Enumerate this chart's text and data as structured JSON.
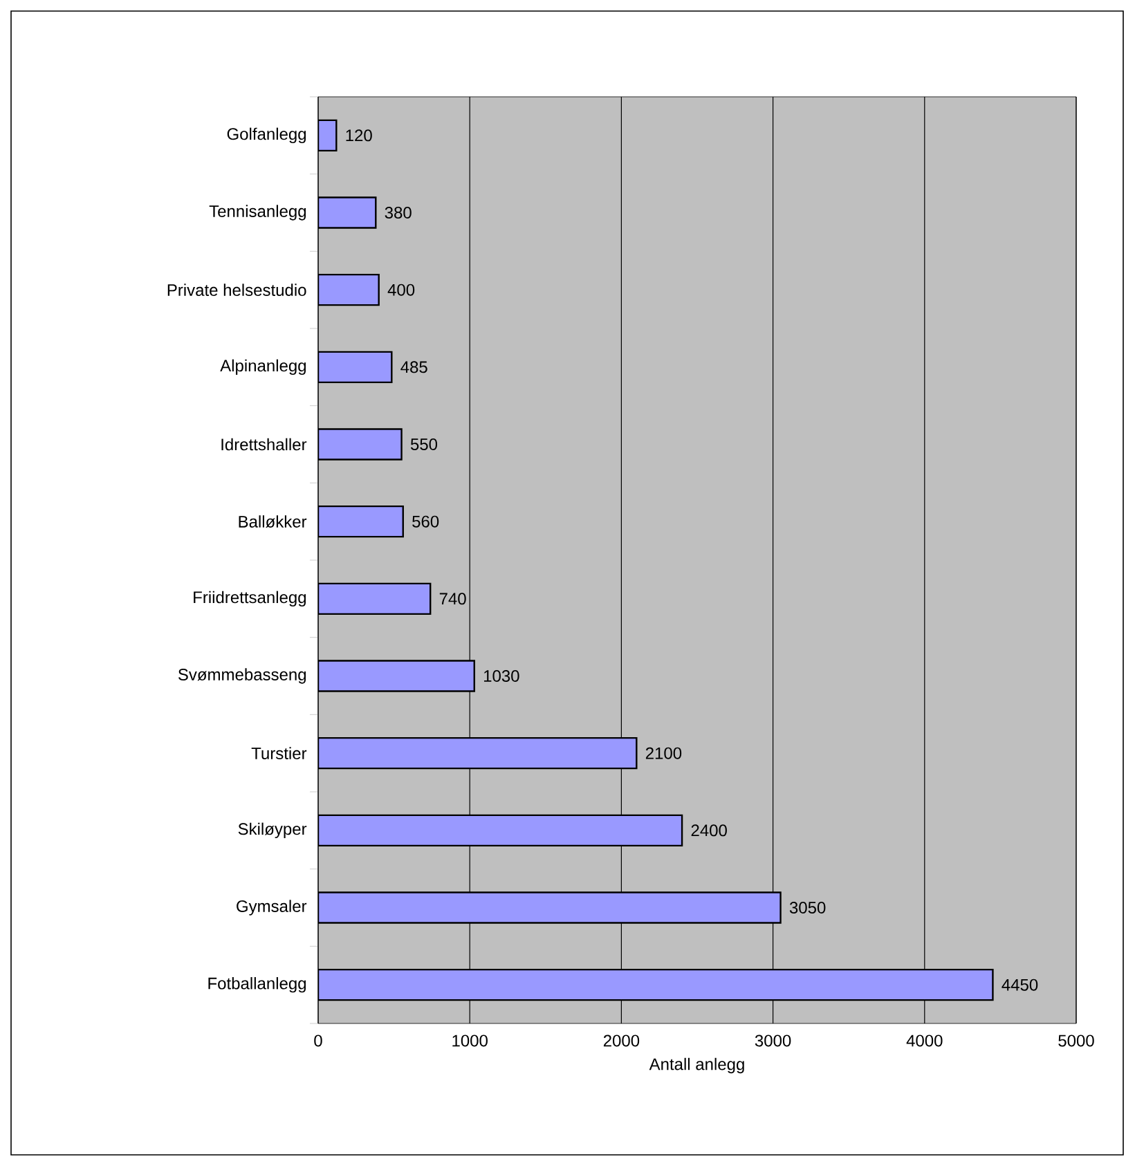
{
  "chart_data": {
    "type": "bar",
    "orientation": "horizontal",
    "xlabel": "Antall anlegg",
    "categories": [
      "Golfanlegg",
      "Tennisanlegg",
      "Private helsestudio",
      "Alpinanlegg",
      "Idrettshaller",
      "Balløkker",
      "Friidrettsanlegg",
      "Svømmebasseng",
      "Turstier",
      "Skiløyper",
      "Gymsaler",
      "Fotballanlegg"
    ],
    "values": [
      120,
      380,
      400,
      485,
      550,
      560,
      740,
      1030,
      2100,
      2400,
      3050,
      4450
    ],
    "color": "#9999ff",
    "xlim": [
      0,
      5000
    ],
    "xticks": [
      0,
      1000,
      2000,
      3000,
      4000,
      5000
    ],
    "grid": "x",
    "data_labels": true
  }
}
